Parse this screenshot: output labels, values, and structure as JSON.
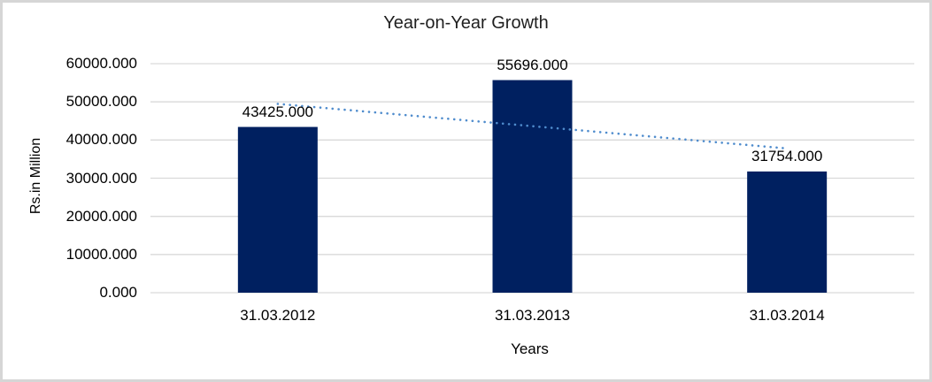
{
  "chart_data": {
    "type": "bar",
    "title": "Year-on-Year Growth",
    "xlabel": "Years",
    "ylabel": "Rs.in Million",
    "categories": [
      "31.03.2012",
      "31.03.2013",
      "31.03.2014"
    ],
    "values": [
      43425,
      55696,
      31754
    ],
    "data_labels": [
      "43425.000",
      "55696.000",
      "31754.000"
    ],
    "ylim": [
      0,
      60000
    ],
    "y_tick_values": [
      0,
      10000,
      20000,
      30000,
      40000,
      50000,
      60000
    ],
    "y_tick_labels": [
      "0.000",
      "10000.000",
      "20000.000",
      "30000.000",
      "40000.000",
      "50000.000",
      "60000.000"
    ],
    "grid": "horizontal",
    "legend": "none",
    "bar_color": "#002060",
    "gridline_color": "#d9d9d9",
    "text_color": "#000000",
    "title_color": "#1f1f1f",
    "chart_border_color": "#d6d6d6",
    "background_color": "#ffffff",
    "trendline": {
      "style": "dotted",
      "color": "#4f8ccd",
      "values": [
        49460.5,
        43625,
        37789.5
      ]
    }
  }
}
